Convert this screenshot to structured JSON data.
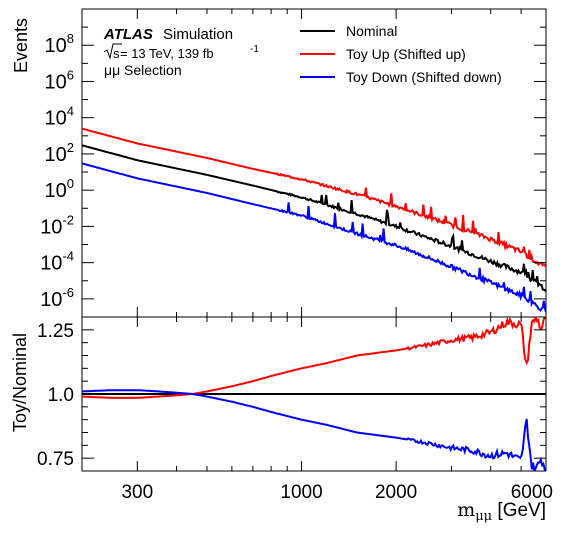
{
  "chart_data": {
    "type": "line",
    "annotation": {
      "experiment": "ATLAS",
      "label": "Simulation",
      "energy_prefix": "s",
      "energy_text": " = 13 TeV, 139 fb",
      "energy_exp": "-1",
      "selection": "μμ Selection"
    },
    "xlabel": "m",
    "xlabel_sub": "μμ",
    "xlabel_unit": " [GeV]",
    "x_scale": "log",
    "xlim": [
      200,
      6000
    ],
    "x_ticks": [
      300,
      1000,
      2000,
      6000
    ],
    "top": {
      "ylabel": "Events",
      "y_scale": "log",
      "ylim": [
        1e-07,
        10000000000.0
      ],
      "y_ticks": [
        {
          "v": 100000000.0,
          "base": "10",
          "exp": "8"
        },
        {
          "v": 1000000.0,
          "base": "10",
          "exp": "6"
        },
        {
          "v": 10000.0,
          "base": "10",
          "exp": "4"
        },
        {
          "v": 100.0,
          "base": "10",
          "exp": "2"
        },
        {
          "v": 1,
          "base": "10",
          "exp": "0"
        },
        {
          "v": 0.01,
          "base": "10",
          "exp": "-2"
        },
        {
          "v": 0.0001,
          "base": "10",
          "exp": "-4"
        },
        {
          "v": 1e-06,
          "base": "10",
          "exp": "-6"
        }
      ],
      "legend_position": "top-right",
      "series": [
        {
          "name": "Nominal",
          "color": "#000000",
          "x": [
            200,
            300,
            500,
            700,
            1000,
            1500,
            2000,
            3000,
            4000,
            5000,
            6000
          ],
          "y": [
            300,
            45,
            7,
            1.8,
            0.4,
            0.05,
            0.01,
            0.0008,
            0.00012,
            3e-05,
            3e-06
          ]
        },
        {
          "name": "Toy Up (Shifted up)",
          "color": "#ff0000",
          "x": [
            200,
            300,
            500,
            700,
            1000,
            1500,
            2000,
            3000,
            4000,
            5000,
            6000
          ],
          "y": [
            2500,
            380,
            60,
            15,
            4,
            0.6,
            0.13,
            0.012,
            0.002,
            0.0004,
            5e-05
          ]
        },
        {
          "name": "Toy Down (Shifted down)",
          "color": "#0000ff",
          "x": [
            200,
            300,
            500,
            700,
            1000,
            1500,
            2000,
            3000,
            4000,
            5000,
            6000
          ],
          "y": [
            30,
            4.5,
            0.7,
            0.17,
            0.04,
            0.004,
            0.0009,
            6e-05,
            8e-06,
            1.5e-06,
            2e-07
          ]
        }
      ]
    },
    "bottom": {
      "ylabel": "Toy/Nominal",
      "ylim": [
        0.7,
        1.3
      ],
      "y_ticks": [
        0.75,
        1.0,
        1.25
      ],
      "y_tick_labels": [
        "0.75",
        "1.0",
        "1.25"
      ],
      "reference_line": 1.0,
      "series": [
        {
          "name": "Toy Up (Shifted up)",
          "color": "#ff0000",
          "x": [
            200,
            250,
            300,
            350,
            400,
            450,
            500,
            600,
            700,
            800,
            1000,
            1200,
            1500,
            2000,
            2500,
            3000,
            3500,
            4000,
            4500,
            5000,
            5200,
            5400,
            5600,
            5800,
            6000
          ],
          "y": [
            0.99,
            0.985,
            0.985,
            0.99,
            0.995,
            1.0,
            1.01,
            1.03,
            1.05,
            1.07,
            1.1,
            1.12,
            1.15,
            1.17,
            1.19,
            1.21,
            1.22,
            1.24,
            1.28,
            1.27,
            1.1,
            1.27,
            1.3,
            1.25,
            1.3
          ]
        },
        {
          "name": "Toy Down (Shifted down)",
          "color": "#0000ff",
          "x": [
            200,
            250,
            300,
            350,
            400,
            450,
            500,
            600,
            700,
            800,
            1000,
            1200,
            1500,
            2000,
            2500,
            3000,
            3500,
            4000,
            4500,
            5000,
            5200,
            5400,
            5600,
            5800,
            6000
          ],
          "y": [
            1.01,
            1.015,
            1.015,
            1.01,
            1.005,
            1.0,
            0.99,
            0.97,
            0.95,
            0.93,
            0.9,
            0.88,
            0.85,
            0.83,
            0.81,
            0.79,
            0.78,
            0.76,
            0.77,
            0.74,
            0.9,
            0.72,
            0.71,
            0.75,
            0.7
          ]
        }
      ]
    }
  }
}
